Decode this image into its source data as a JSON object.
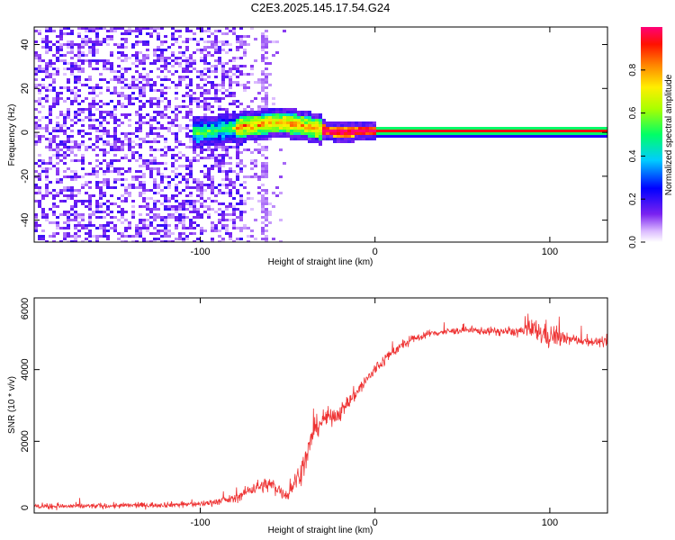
{
  "title": "C2E3.2025.145.17.54.G24",
  "chart_data": [
    {
      "type": "heatmap",
      "xlabel": "Height of straight line (km)",
      "ylabel": "Frequency (Hz)",
      "xlim": [
        -195,
        133
      ],
      "ylim": [
        -50,
        48
      ],
      "xticks": [
        -100,
        0,
        100
      ],
      "yticks": [
        -40,
        -20,
        0,
        20,
        40
      ],
      "colorbar": {
        "label": "Normalized spectral amplitude",
        "range": [
          0,
          1
        ],
        "ticks": [
          "0.0",
          "0.2",
          "0.4",
          "0.6",
          "0.8"
        ],
        "tick_values": [
          0.0,
          0.2,
          0.4,
          0.6,
          0.8
        ]
      },
      "ridge": {
        "description": "dominant frequency track",
        "x": [
          -100,
          -90,
          -80,
          -70,
          -60,
          -50,
          -40,
          -30,
          -20,
          -10,
          0,
          50,
          100,
          133
        ],
        "y": [
          0,
          1,
          2,
          3,
          4,
          4,
          3,
          1,
          0,
          0.5,
          0.5,
          0.5,
          0.5,
          0.5
        ]
      },
      "noise_region_x": [
        -195,
        -75
      ],
      "vertical_artifact_x": -63
    },
    {
      "type": "line",
      "xlabel": "Height of straight line (km)",
      "ylabel": "SNR (10 * v/v)",
      "xlim": [
        -195,
        133
      ],
      "ylim": [
        0,
        6000
      ],
      "xticks": [
        -100,
        0,
        100
      ],
      "yticks": [
        0,
        2000,
        4000,
        6000
      ],
      "series": [
        {
          "name": "SNR",
          "color": "#ee3333",
          "x": [
            -195,
            -150,
            -100,
            -80,
            -70,
            -60,
            -50,
            -40,
            -35,
            -30,
            -25,
            -20,
            -10,
            0,
            10,
            20,
            30,
            50,
            80,
            90,
            100,
            110,
            120,
            133
          ],
          "y": [
            180,
            200,
            250,
            400,
            700,
            800,
            500,
            1400,
            2300,
            2600,
            2700,
            2800,
            3400,
            4000,
            4500,
            4800,
            5000,
            5100,
            5050,
            5100,
            4950,
            4850,
            4800,
            4750
          ],
          "noise": [
            120,
            120,
            130,
            200,
            300,
            350,
            300,
            600,
            500,
            450,
            400,
            380,
            350,
            300,
            250,
            200,
            150,
            150,
            200,
            500,
            600,
            250,
            200,
            200
          ]
        }
      ]
    }
  ]
}
